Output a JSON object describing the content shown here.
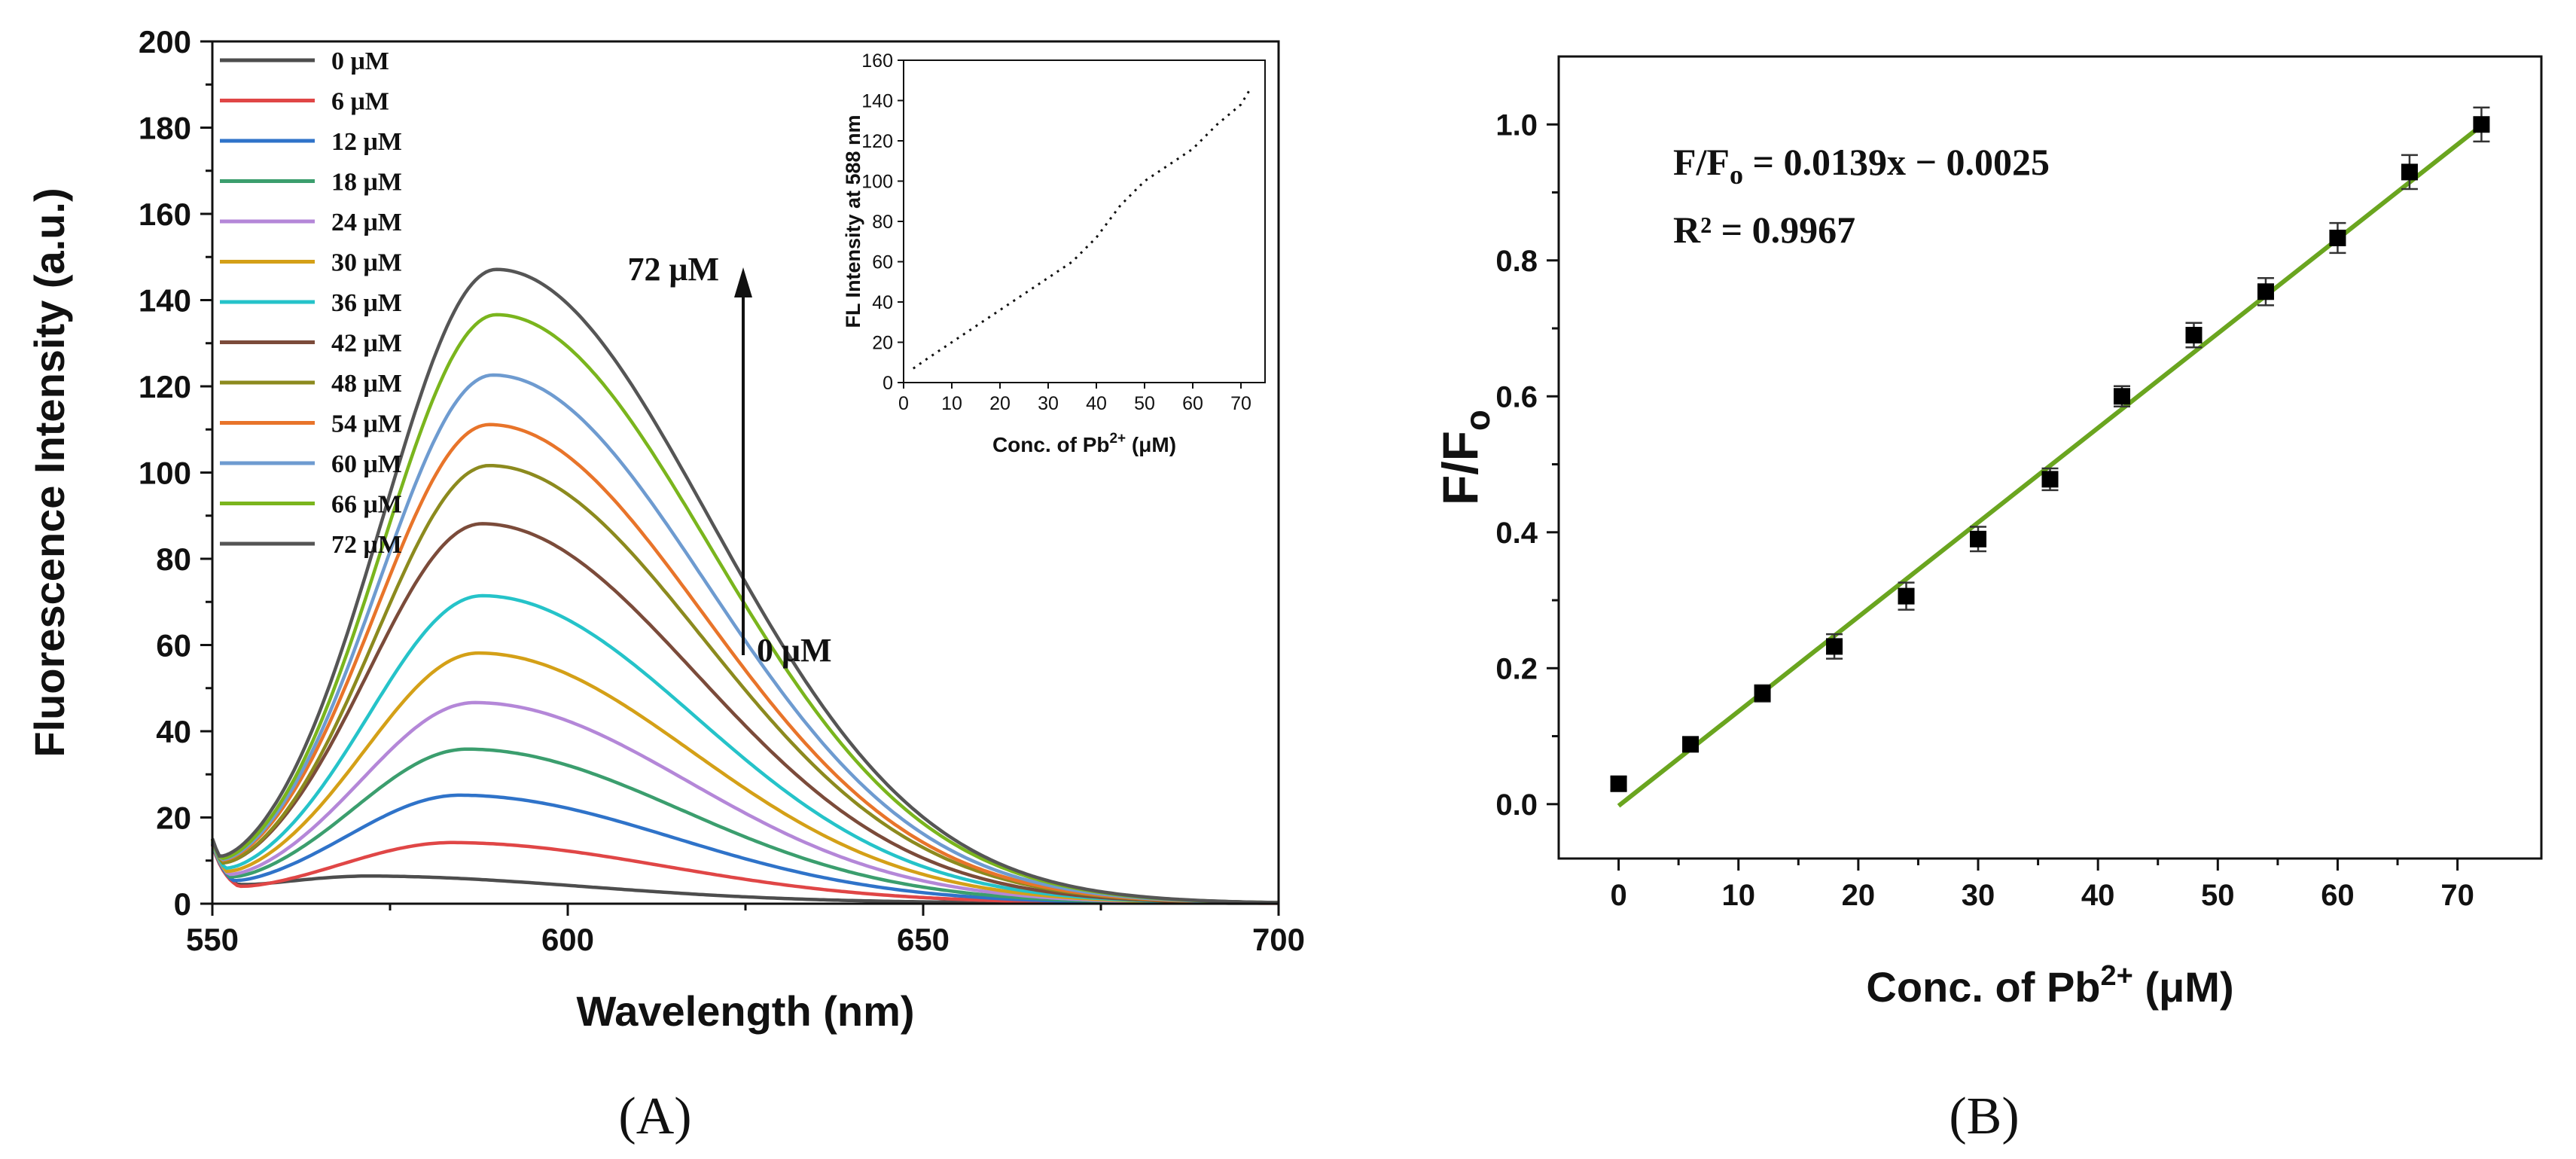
{
  "panels": {
    "A": {
      "label": "(A)"
    },
    "B": {
      "label": "(B)"
    }
  },
  "annotations": {
    "arrow_top": "72 μM",
    "arrow_bottom": "0 μM",
    "equation_lhs": "F/F",
    "equation_sub": "o",
    "equation_rhs": " = 0.0139x − 0.0025",
    "r2": "R² = 0.9967"
  },
  "chart_data": [
    {
      "id": "spectra",
      "type": "line",
      "title": "",
      "xlabel": "Wavelength (nm)",
      "ylabel": "Fluorescence Intensity (a.u.)",
      "xlim": [
        550,
        700
      ],
      "ylim": [
        0,
        200
      ],
      "xticks": [
        550,
        600,
        650,
        700
      ],
      "yticks": [
        0,
        20,
        40,
        60,
        80,
        100,
        120,
        140,
        160,
        180,
        200
      ],
      "legend_position": "top-left",
      "series": [
        {
          "name": "0 μM",
          "color": "#4d4d4d",
          "peak_wavelength": 573,
          "peak": 5.6,
          "start": 12
        },
        {
          "name": "6 μM",
          "color": "#e04646",
          "peak_wavelength": 584,
          "peak": 13.5,
          "start": 12
        },
        {
          "name": "12 μM",
          "color": "#2f73c9",
          "peak_wavelength": 585,
          "peak": 24.5,
          "start": 12
        },
        {
          "name": "18 μM",
          "color": "#3b9e6e",
          "peak_wavelength": 586,
          "peak": 35.2,
          "start": 12
        },
        {
          "name": "24 μM",
          "color": "#b487d8",
          "peak_wavelength": 587,
          "peak": 46.0,
          "start": 12
        },
        {
          "name": "30 μM",
          "color": "#d4a017",
          "peak_wavelength": 587.5,
          "peak": 57.5,
          "start": 12
        },
        {
          "name": "36 μM",
          "color": "#25c3c9",
          "peak_wavelength": 588,
          "peak": 70.8,
          "start": 12
        },
        {
          "name": "42 μM",
          "color": "#7b4b3a",
          "peak_wavelength": 588,
          "peak": 87.5,
          "start": 12
        },
        {
          "name": "48 μM",
          "color": "#8c8a1e",
          "peak_wavelength": 589,
          "peak": 101.0,
          "start": 12
        },
        {
          "name": "54 μM",
          "color": "#e8742a",
          "peak_wavelength": 589,
          "peak": 110.5,
          "start": 12
        },
        {
          "name": "60 μM",
          "color": "#6e9bd0",
          "peak_wavelength": 589.5,
          "peak": 122.0,
          "start": 12
        },
        {
          "name": "66 μM",
          "color": "#7ab51d",
          "peak_wavelength": 590,
          "peak": 136.0,
          "start": 12
        },
        {
          "name": "72 μM",
          "color": "#555555",
          "peak_wavelength": 590,
          "peak": 146.5,
          "start": 12
        }
      ]
    },
    {
      "id": "inset",
      "type": "line",
      "xlabel": "Conc. of Pb²⁺ (μM)",
      "xlabel_main": "Conc. of Pb",
      "xlabel_sup": "2+",
      "xlabel_unit": " (μM)",
      "ylabel": "FL Intensity at 588 nm",
      "xlim": [
        0,
        75
      ],
      "ylim": [
        0,
        160
      ],
      "xticks": [
        0,
        10,
        20,
        30,
        40,
        50,
        60,
        70
      ],
      "yticks": [
        0,
        20,
        40,
        60,
        80,
        100,
        120,
        140,
        160
      ],
      "x": [
        2,
        5,
        10,
        15,
        20,
        25,
        30,
        35,
        40,
        45,
        50,
        55,
        60,
        65,
        70,
        72
      ],
      "y": [
        7,
        12,
        20,
        28,
        36,
        44,
        52,
        60,
        72,
        88,
        100,
        108,
        116,
        128,
        138,
        146
      ]
    },
    {
      "id": "calibration",
      "type": "scatter",
      "xlabel": "Conc. of Pb²⁺ (μM)",
      "xlabel_main": "Conc. of Pb",
      "xlabel_sup": "2+",
      "xlabel_unit": " (μM)",
      "ylabel": "F/Fo",
      "ylabel_main": "F/F",
      "ylabel_sub": "o",
      "xlim": [
        -5,
        77
      ],
      "ylim": [
        -0.08,
        1.1
      ],
      "xticks": [
        0,
        10,
        20,
        30,
        40,
        50,
        60,
        70
      ],
      "yticks": [
        0.0,
        0.2,
        0.4,
        0.6,
        0.8,
        1.0
      ],
      "ytick_labels": [
        "0.0",
        "0.2",
        "0.4",
        "0.6",
        "0.8",
        "1.0"
      ],
      "x": [
        0,
        6,
        12,
        18,
        24,
        30,
        36,
        42,
        48,
        54,
        60,
        66,
        72
      ],
      "y": [
        0.03,
        0.088,
        0.163,
        0.232,
        0.306,
        0.39,
        0.478,
        0.6,
        0.69,
        0.754,
        0.833,
        0.93,
        1.0
      ],
      "error": [
        0.01,
        0.01,
        0.012,
        0.018,
        0.02,
        0.018,
        0.016,
        0.015,
        0.018,
        0.02,
        0.022,
        0.025,
        0.025
      ],
      "fit": {
        "slope": 0.0139,
        "intercept": -0.0025,
        "x_range": [
          0,
          72
        ],
        "color": "#6aa51f"
      }
    }
  ]
}
